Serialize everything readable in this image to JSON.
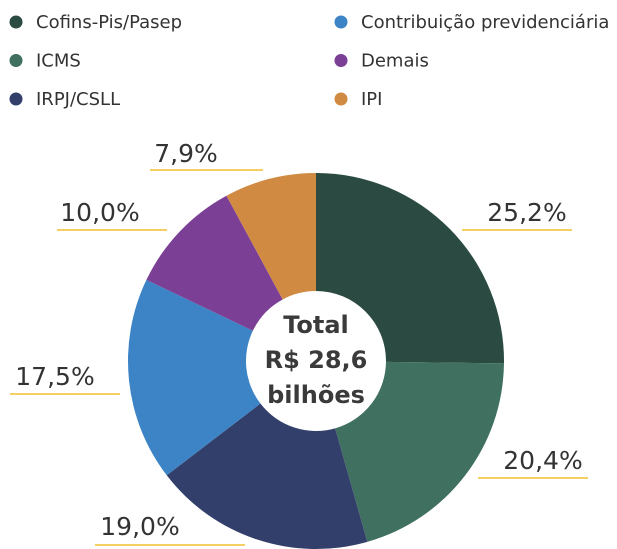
{
  "chart_data": {
    "type": "donut",
    "categories": [
      "Cofins-Pis/Pasep",
      "ICMS",
      "IRPJ/CSLL",
      "Contribuição previdenciária",
      "Demais",
      "IPI"
    ],
    "values": [
      25.2,
      20.4,
      19.0,
      17.5,
      10.0,
      7.9
    ],
    "value_labels": [
      "25,2%",
      "20,4%",
      "19,0%",
      "17,5%",
      "10,0%",
      "7,9%"
    ],
    "colors": [
      "#2a4a42",
      "#3f7060",
      "#323f6b",
      "#3d84c6",
      "#7b3f96",
      "#d08a42"
    ],
    "center_label": [
      "Total",
      "R$ 28,6",
      "bilhões"
    ]
  }
}
